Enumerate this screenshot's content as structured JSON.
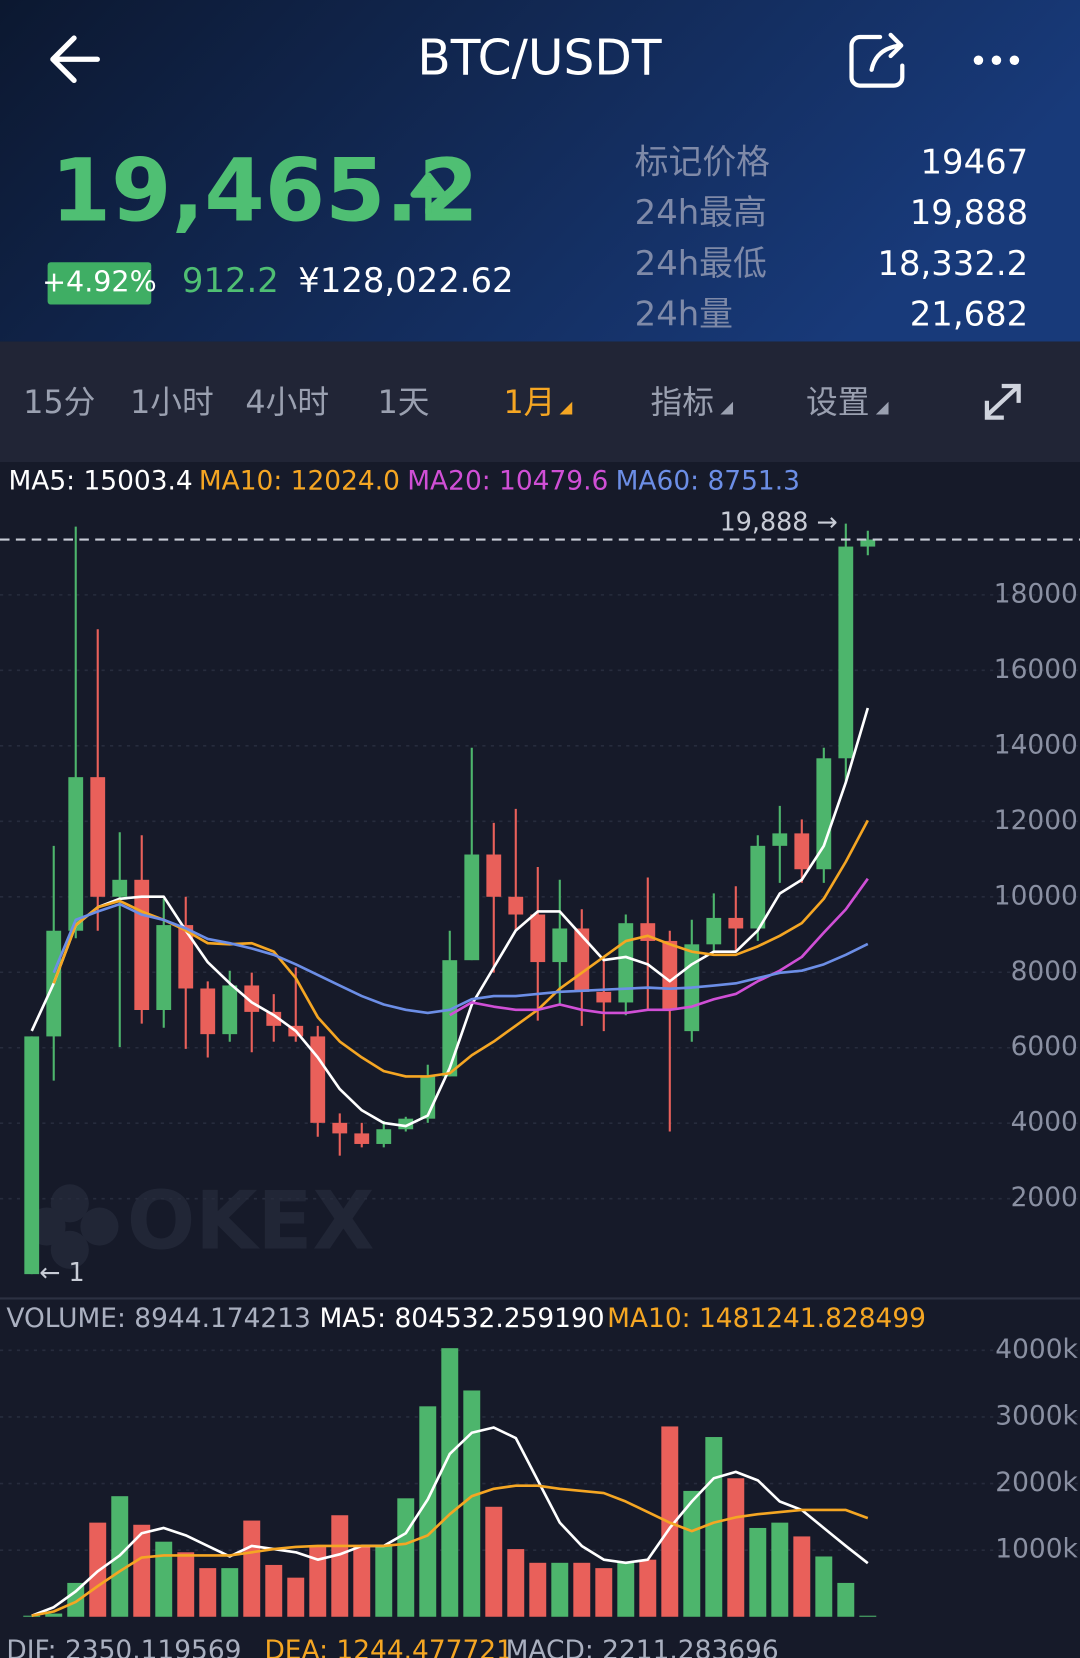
{
  "header": {
    "title": "BTC/USDT"
  },
  "ticker": {
    "price": {
      "value": 19465.2,
      "label": "19,465.2"
    },
    "change_pct": "+4.92%",
    "change": "912.2",
    "cny": "¥128,022.62",
    "stats": [
      {
        "label": "标记价格",
        "value": "19467"
      },
      {
        "label": "24h最高",
        "value": "19,888"
      },
      {
        "label": "24h最低",
        "value": "18,332.2"
      },
      {
        "label": "24h量",
        "value": "21,682"
      }
    ]
  },
  "tabs": [
    "15分",
    "1小时",
    "4小时",
    "1天",
    "1月",
    "指标",
    "设置"
  ],
  "active_tab": 4,
  "chart_data": {
    "type": "candlestick",
    "watermark": "OKEX",
    "up_color": "#4db56c",
    "down_color": "#e9605a",
    "ylim": [
      0,
      20300
    ],
    "yticks": [
      2000,
      4000,
      6000,
      8000,
      10000,
      12000,
      14000,
      16000,
      18000
    ],
    "grid": true,
    "open": [
      1,
      6300,
      9100,
      13170,
      10000,
      10450,
      7000,
      9250,
      7570,
      6360,
      7650,
      6950,
      6580,
      6300,
      4010,
      3730,
      3450,
      3840,
      4120,
      5240,
      8320,
      11120,
      10000,
      9530,
      8270,
      9160,
      7480,
      7200,
      9300,
      8830,
      6440,
      8740,
      9440,
      9160,
      11350,
      11680,
      10730,
      13670,
      19280
    ],
    "high": [
      6300,
      11350,
      19810,
      17090,
      11710,
      11630,
      9950,
      10000,
      7760,
      8040,
      7990,
      7420,
      8130,
      6580,
      4260,
      4010,
      4060,
      4170,
      5550,
      9100,
      13950,
      11960,
      12330,
      10790,
      10450,
      9670,
      8410,
      9530,
      10510,
      9100,
      9390,
      10090,
      10280,
      11630,
      12410,
      12050,
      13950,
      19888,
      19700
    ],
    "low": [
      1,
      5130,
      8900,
      9100,
      6020,
      6640,
      6530,
      5970,
      5740,
      6160,
      5880,
      6160,
      6160,
      3640,
      3140,
      3360,
      3360,
      3780,
      4010,
      5240,
      8320,
      7990,
      9100,
      6720,
      7140,
      6580,
      6440,
      6860,
      7000,
      3780,
      6160,
      8550,
      8550,
      8830,
      10370,
      10370,
      10370,
      13030,
      19050
    ],
    "close": [
      6300,
      9100,
      13170,
      10000,
      10450,
      7000,
      9250,
      7570,
      6360,
      7650,
      6950,
      6580,
      6300,
      4010,
      3730,
      3450,
      3840,
      4120,
      5240,
      8320,
      11120,
      10000,
      9530,
      8270,
      9160,
      7480,
      7200,
      9300,
      8830,
      7000,
      8740,
      9440,
      9160,
      11350,
      11680,
      10730,
      13670,
      19280,
      19465.2
    ],
    "high_marker": {
      "value": 19888,
      "label": "19,888 →"
    },
    "low_marker": {
      "value": 1,
      "label": "← 1"
    },
    "moving_averages": [
      {
        "legend": "MA5: 15003.4",
        "color": "#ffffff",
        "values": [
          6445,
          7706,
          9247,
          9723,
          9947,
          10003,
          10003,
          9107,
          8266,
          7706,
          7201,
          6865,
          6445,
          5744,
          4904,
          4343,
          4007,
          3923,
          4203,
          5464,
          7145,
          8126,
          9107,
          9611,
          9611,
          8966,
          8322,
          8406,
          8210,
          7762,
          8210,
          8546,
          8546,
          9107,
          10087,
          10451,
          11348,
          13029,
          15003.4
        ]
      },
      {
        "legend": "MA10: 12024.0",
        "color": "#f5a623",
        "values": [
          null,
          7706,
          9247,
          9723,
          9891,
          9611,
          9387,
          9107,
          8770,
          8742,
          8770,
          8546,
          7846,
          6809,
          6164,
          5744,
          5380,
          5240,
          5240,
          5324,
          5800,
          6164,
          6585,
          7005,
          7565,
          7986,
          8406,
          8826,
          8966,
          8742,
          8546,
          8462,
          8462,
          8686,
          8966,
          9303,
          9947,
          10928,
          12024.0
        ]
      },
      {
        "legend": "MA20: 10479.6",
        "color": "#d04fd6",
        "values": [
          null,
          null,
          null,
          null,
          null,
          null,
          null,
          null,
          null,
          null,
          null,
          null,
          null,
          null,
          null,
          null,
          null,
          null,
          null,
          6865,
          7201,
          7089,
          7005,
          7005,
          7145,
          7005,
          6921,
          6921,
          7005,
          7005,
          7089,
          7285,
          7425,
          7762,
          8042,
          8406,
          9050,
          9667,
          10479.6
        ]
      },
      {
        "legend": "MA60: 8751.3",
        "color": "#6c8ee6",
        "values": [
          null,
          7986,
          9387,
          9611,
          9807,
          9527,
          9387,
          9163,
          8882,
          8770,
          8630,
          8462,
          8210,
          7930,
          7649,
          7369,
          7145,
          7005,
          6921,
          7005,
          7285,
          7369,
          7369,
          7425,
          7481,
          7509,
          7537,
          7565,
          7593,
          7565,
          7593,
          7649,
          7706,
          7846,
          7986,
          8042,
          8210,
          8462,
          8751.3
        ]
      }
    ],
    "volume": {
      "legend": "VOLUME: 8944.174213",
      "ylim": [
        0,
        4200
      ],
      "yticks": [
        {
          "value": 1000,
          "label": "1000k"
        },
        {
          "value": 2000,
          "label": "2000k"
        },
        {
          "value": 3000,
          "label": "3000k"
        },
        {
          "value": 4000,
          "label": "4000k"
        }
      ],
      "values": [
        16,
        48,
        508,
        1413,
        1810,
        1381,
        1127,
        968,
        730,
        730,
        1444,
        778,
        587,
        1048,
        1524,
        1063,
        1063,
        1778,
        3159,
        4032,
        3397,
        1651,
        1016,
        810,
        810,
        810,
        730,
        810,
        857,
        2857,
        1889,
        2698,
        2079,
        1333,
        1413,
        1206,
        905,
        508,
        8.944174213
      ],
      "moving_averages": [
        {
          "legend": "MA5: 804532.259190",
          "color": "#ffffff",
          "values": [
            16,
            143,
            381,
            683,
            921,
            1254,
            1333,
            1222,
            1063,
            905,
            1063,
            1016,
            968,
            857,
            937,
            1063,
            1063,
            1254,
            1762,
            2444,
            2762,
            2841,
            2683,
            2048,
            1413,
            1063,
            857,
            810,
            857,
            1333,
            1730,
            2079,
            2175,
            2048,
            1730,
            1603,
            1333,
            1063,
            804.53225919
          ]
        },
        {
          "legend": "MA10: 1481241.828499",
          "color": "#f5a623",
          "values": [
            16,
            79,
            222,
            460,
            683,
            889,
            921,
            921,
            921,
            921,
            968,
            1016,
            1048,
            1063,
            1063,
            1063,
            1063,
            1095,
            1222,
            1540,
            1810,
            1921,
            1968,
            1968,
            1921,
            1889,
            1857,
            1730,
            1571,
            1413,
            1286,
            1413,
            1492,
            1540,
            1571,
            1603,
            1603,
            1603,
            1481.241828499
          ]
        }
      ]
    },
    "macd_legend": [
      {
        "text": "DIF: 2350.119569",
        "color": "#aab0c0"
      },
      {
        "text": "DEA: 1244.477721",
        "color": "#f5a623"
      },
      {
        "text": "MACD: 2211.283696",
        "color": "#aab0c0"
      }
    ]
  }
}
